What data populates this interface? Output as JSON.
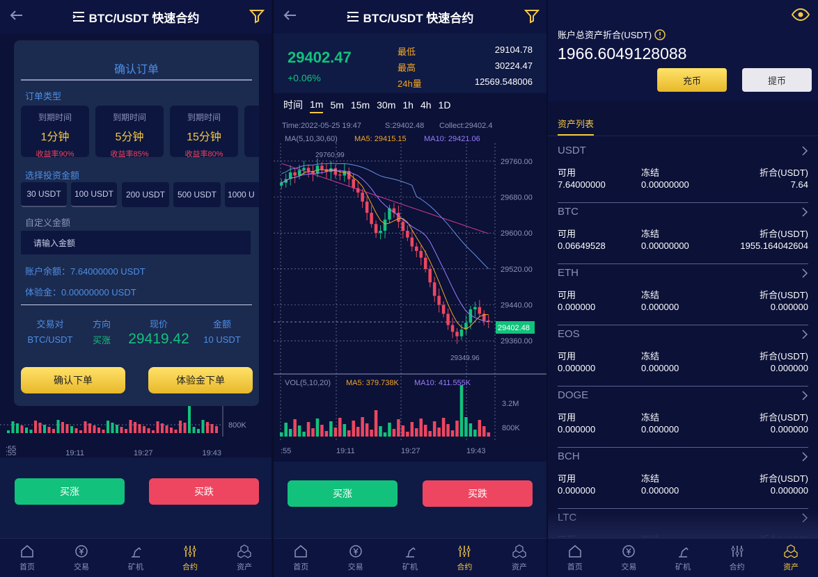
{
  "header": {
    "title": "BTC/USDT 快速合约"
  },
  "tabs": [
    "首页",
    "交易",
    "矿机",
    "合约",
    "资产"
  ],
  "modal": {
    "title": "确认订单",
    "order_type_label": "订单类型",
    "expiry_label": "到期时间",
    "cards": [
      {
        "time": "1分钟",
        "rate": "收益率90%"
      },
      {
        "time": "5分钟",
        "rate": "收益率85%"
      },
      {
        "time": "15分钟",
        "rate": "收益率80%"
      }
    ],
    "amount_label": "选择投资金额",
    "amounts": [
      "30 USDT",
      "100 USDT",
      "200 USDT",
      "500 USDT",
      "1000 U"
    ],
    "custom_label": "自定义金额",
    "custom_placeholder": "请输入金额",
    "balance": "账户余额：7.64000000 USDT",
    "trial": "体验金：0.00000000 USDT",
    "summary_headers": [
      "交易对",
      "方向",
      "现价",
      "金额"
    ],
    "summary_values": {
      "pair": "BTC/USDT",
      "direction": "买涨",
      "price": "29419.42",
      "amount": "10 USDT"
    },
    "confirm": "确认下单",
    "trial_confirm": "体验金下单"
  },
  "buttons": {
    "up": "买涨",
    "down": "买跌"
  },
  "ticker": {
    "price": "29402.47",
    "change": "+0.06%",
    "low_label": "最低",
    "low": "29104.78",
    "high_label": "最高",
    "high": "30224.47",
    "vol_label": "24h量",
    "vol": "12569.548006"
  },
  "timeframes": [
    "时间",
    "1m",
    "5m",
    "15m",
    "30m",
    "1h",
    "4h",
    "1D"
  ],
  "chart_info": {
    "time": "Time:2022-05-25 19:47",
    "s": "S:29402.48",
    "collect": "Collect:29402.4",
    "ma_header": "MA(5,10,30,60)",
    "ma5": "MA5: 29415.15",
    "ma10": "MA10: 29421.06",
    "max_label": "29760.99",
    "min_label": "29349.96",
    "last": "29402.48",
    "vol_header": "VOL(5,10,20)",
    "vol_ma5": "MA5: 379.738K",
    "vol_ma10": "MA10: 411.555K",
    "vol_ticks": [
      "3.2M",
      "800K"
    ],
    "colors": {
      "up": "#12c27c",
      "down": "#ee4660",
      "ma5": "#f5a623",
      "ma10": "#9b7cff"
    }
  },
  "chart_data": {
    "type": "candlestick",
    "y_ticks": [
      29760.0,
      29680.0,
      29600.0,
      29520.0,
      29440.0,
      29360.0
    ],
    "x_ticks": [
      ":55",
      "19:11",
      "19:27",
      "19:43"
    ],
    "close": [
      29712,
      29720,
      29735,
      29728,
      29740,
      29745,
      29738,
      29732,
      29750,
      29742,
      29736,
      29744,
      29730,
      29728,
      29738,
      29720,
      29700,
      29690,
      29670,
      29645,
      29620,
      29600,
      29605,
      29630,
      29655,
      29645,
      29625,
      29605,
      29590,
      29570,
      29560,
      29545,
      29520,
      29490,
      29460,
      29440,
      29420,
      29395,
      29380,
      29370,
      29385,
      29400,
      29430,
      29435,
      29420,
      29405,
      29402
    ],
    "volume_note": "volume bars below price chart"
  },
  "assets": {
    "title": "账户总资产折合(USDT)",
    "total": "1966.6049128088",
    "deposit": "充币",
    "withdraw": "提币",
    "list_title": "资产列表",
    "col_labels": [
      "可用",
      "冻结",
      "折合(USDT)"
    ],
    "items": [
      {
        "name": "USDT",
        "avail": "7.64000000",
        "frozen": "0.00000000",
        "value": "7.64"
      },
      {
        "name": "BTC",
        "avail": "0.06649528",
        "frozen": "0.00000000",
        "value": "1955.164042604"
      },
      {
        "name": "ETH",
        "avail": "0.000000",
        "frozen": "0.000000",
        "value": "0.000000"
      },
      {
        "name": "EOS",
        "avail": "0.000000",
        "frozen": "0.000000",
        "value": "0.000000"
      },
      {
        "name": "DOGE",
        "avail": "0.000000",
        "frozen": "0.000000",
        "value": "0.000000"
      },
      {
        "name": "BCH",
        "avail": "0.000000",
        "frozen": "0.000000",
        "value": "0.000000"
      },
      {
        "name": "LTC",
        "avail": "",
        "frozen": "",
        "value": ""
      }
    ]
  }
}
